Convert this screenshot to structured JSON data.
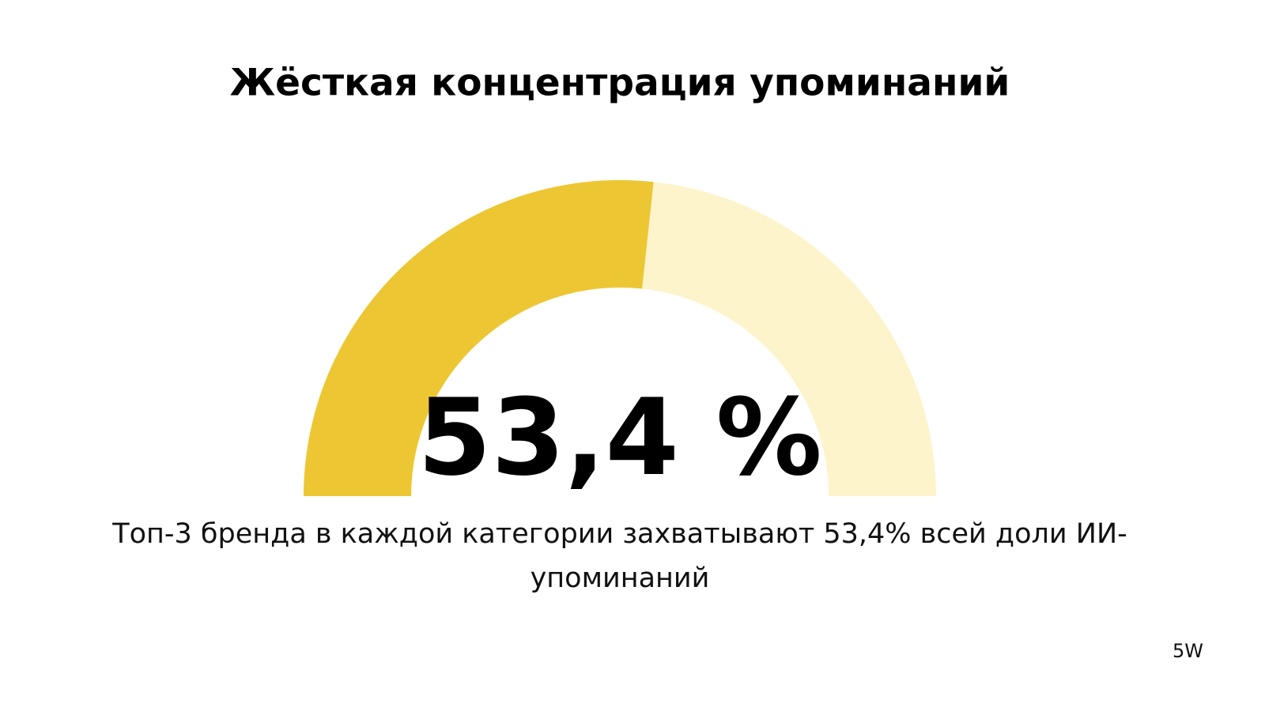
{
  "chart_data": {
    "type": "gauge",
    "title": "Жёсткая концентрация упоминаний",
    "value": 53.4,
    "value_label": "53,4 %",
    "ylim": [
      0,
      100
    ],
    "color": "#ecc733",
    "track_color": "#fdf4cc",
    "caption": "Топ-3 бренда в каждой категории захватывают 53,4% всей доли ИИ-упоминаний",
    "footer": "5W"
  }
}
